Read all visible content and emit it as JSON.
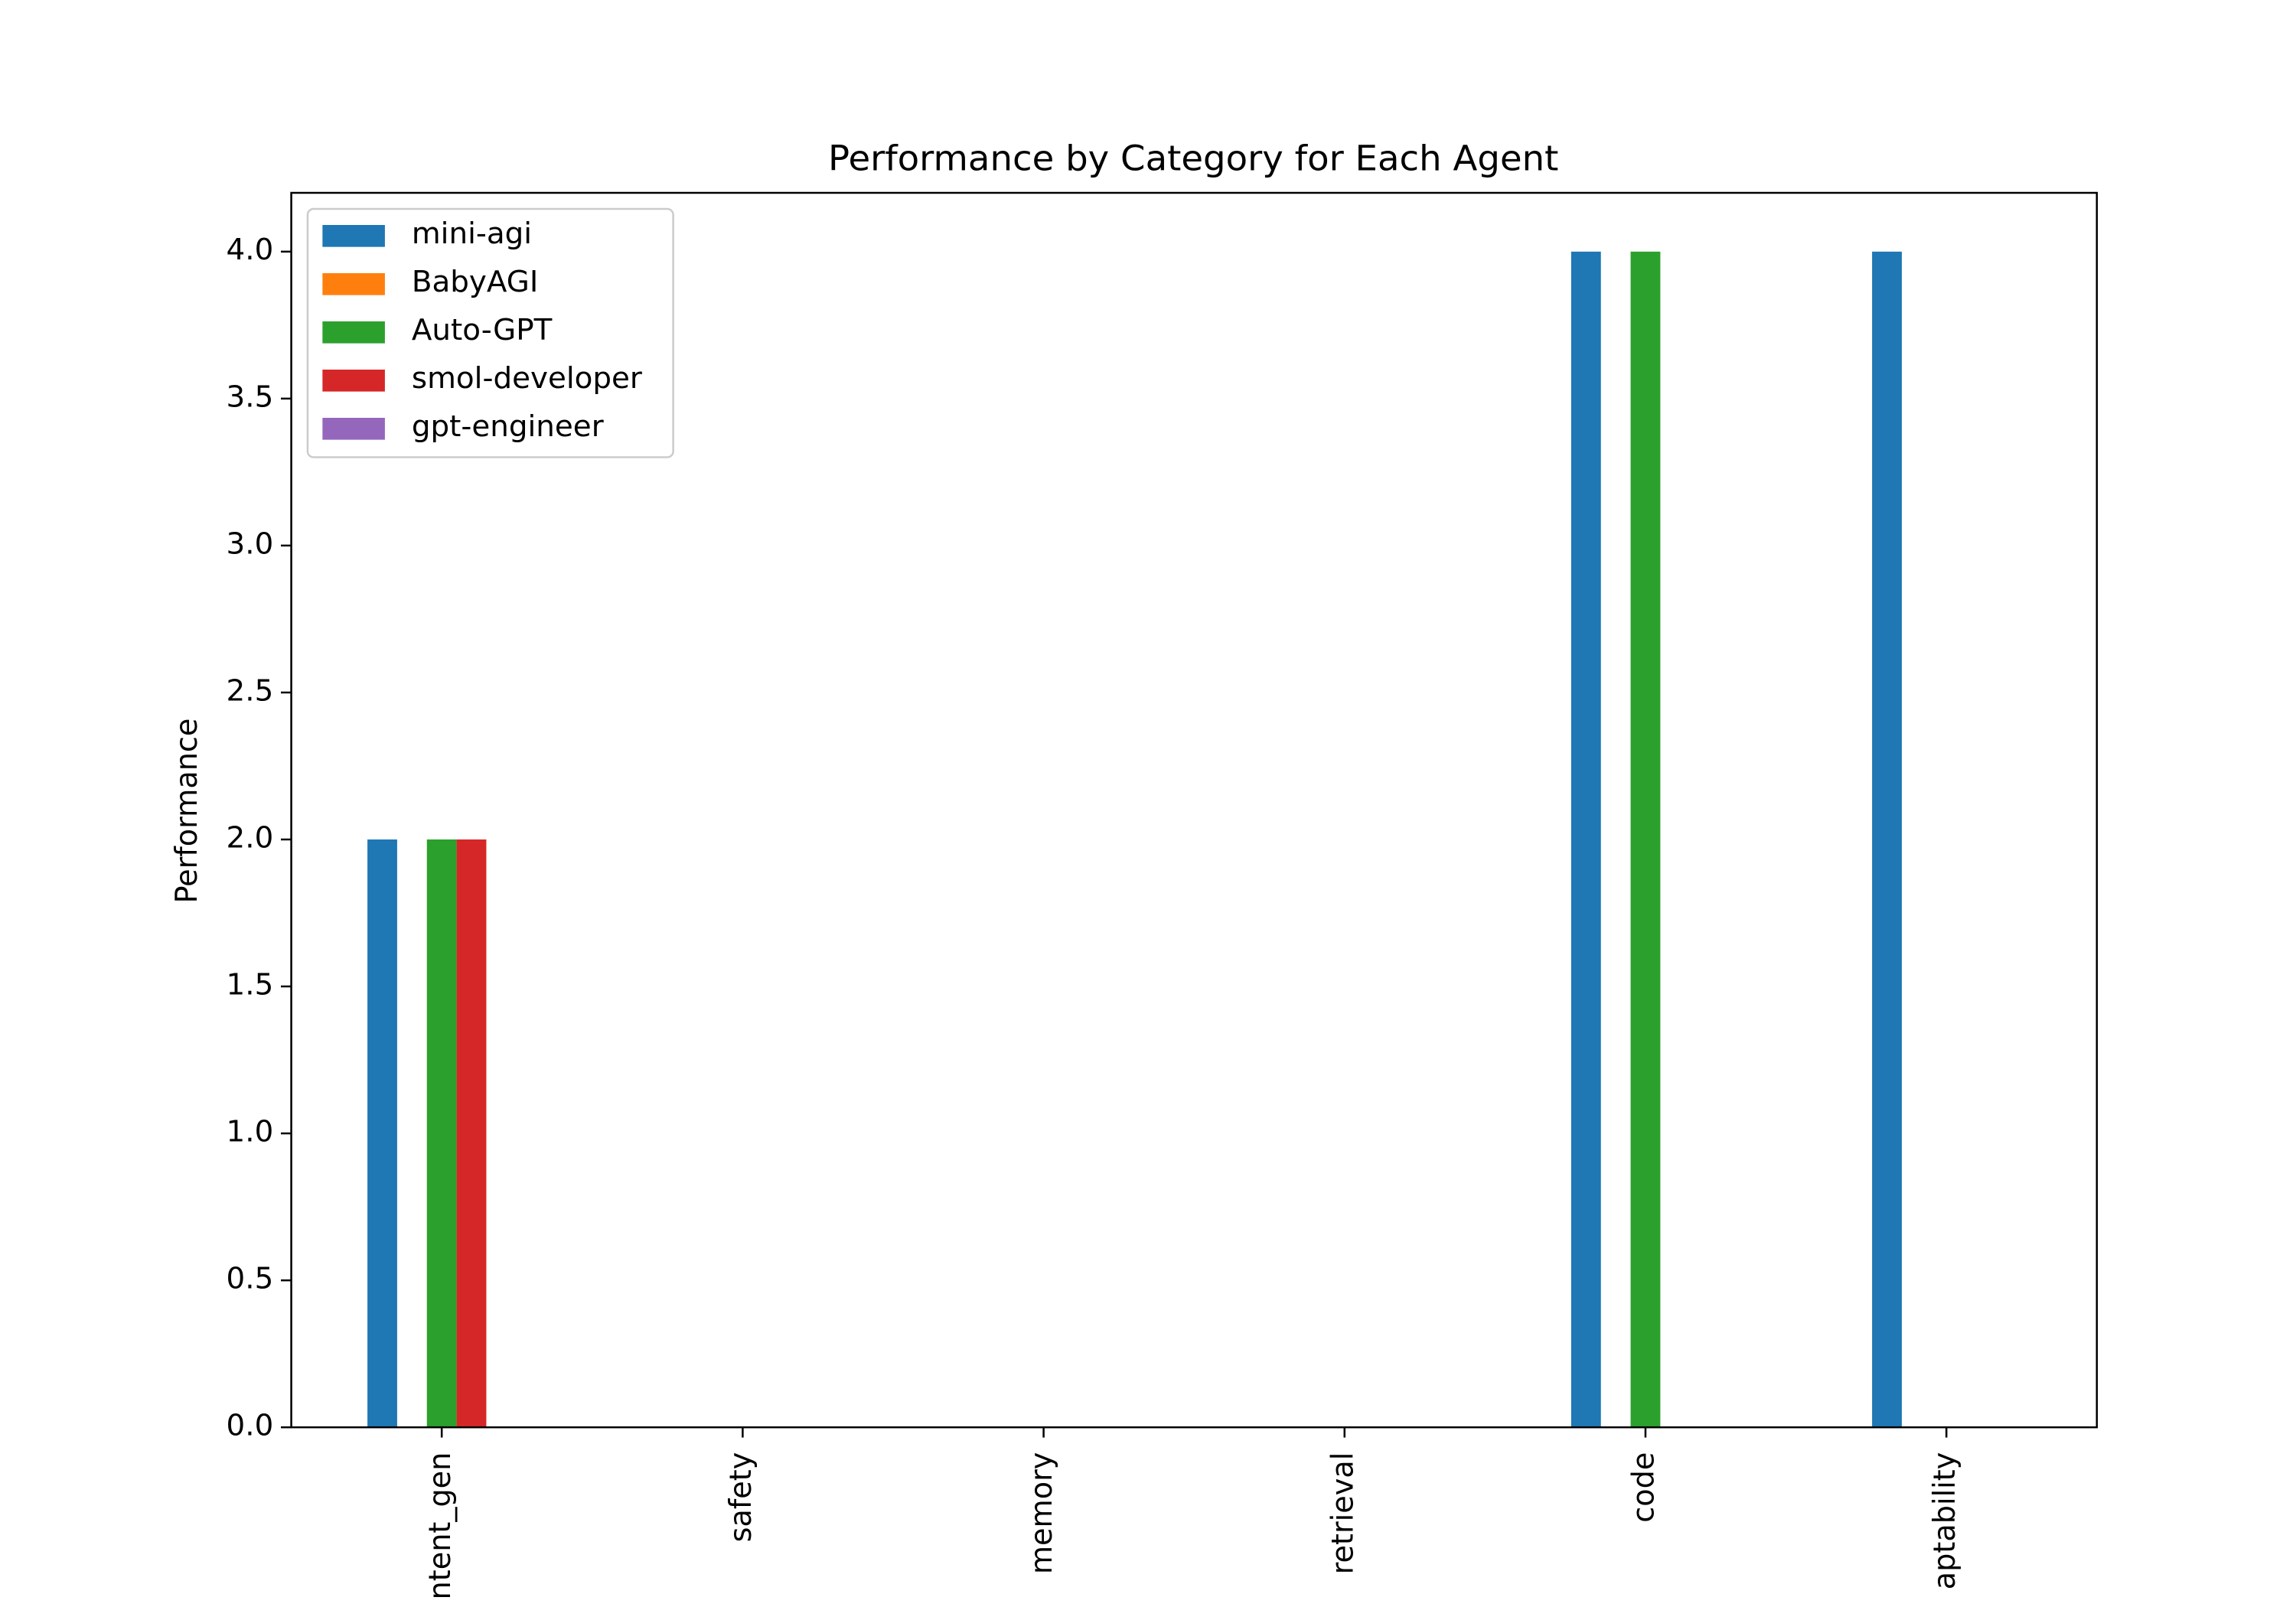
{
  "chart_data": {
    "type": "bar",
    "title": "Performance by Category for Each Agent",
    "y_label": "Performance",
    "categories": [
      "ntent_gen",
      "safety",
      "memory",
      "retrieval",
      "code",
      "aptability"
    ],
    "series": [
      {
        "name": "mini-agi",
        "color": "#1f77b4",
        "values": [
          2,
          0,
          0,
          0,
          4,
          4
        ]
      },
      {
        "name": "BabyAGI",
        "color": "#ff7f0e",
        "values": [
          0,
          0,
          0,
          0,
          0,
          0
        ]
      },
      {
        "name": "Auto-GPT",
        "color": "#2ca02c",
        "values": [
          2,
          0,
          0,
          0,
          4,
          0
        ]
      },
      {
        "name": "smol-developer",
        "color": "#d62728",
        "values": [
          2,
          0,
          0,
          0,
          0,
          0
        ]
      },
      {
        "name": "gpt-engineer",
        "color": "#9467bd",
        "values": [
          0,
          0,
          0,
          0,
          0,
          0
        ]
      }
    ],
    "ylim": [
      0,
      4.2
    ],
    "yticks": [
      {
        "value": 0,
        "label": "0.0"
      },
      0.5,
      {
        "value": 1,
        "label": "1.0"
      },
      1.5,
      {
        "value": 2,
        "label": "2.0"
      },
      2.5,
      {
        "value": 3,
        "label": "3.0"
      },
      3.5,
      {
        "value": 4,
        "label": "4.0"
      }
    ],
    "legend": "upper left"
  }
}
